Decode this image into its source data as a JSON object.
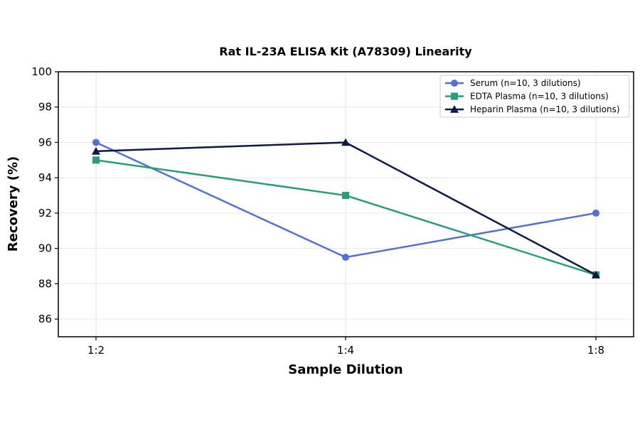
{
  "chart_data": {
    "type": "line",
    "title": "Rat IL-23A ELISA Kit (A78309) Linearity",
    "xlabel": "Sample Dilution",
    "ylabel": "Recovery (%)",
    "categories": [
      "1:2",
      "1:4",
      "1:8"
    ],
    "ylim": [
      85,
      100
    ],
    "yticks": [
      86,
      88,
      90,
      92,
      94,
      96,
      98,
      100
    ],
    "grid": true,
    "legend_position": "top-right",
    "series": [
      {
        "name": "Serum (n=10, 3 dilutions)",
        "values": [
          96,
          89.5,
          92
        ],
        "color": "#5470d6",
        "marker": "circle"
      },
      {
        "name": "EDTA Plasma (n=10, 3 dilutions)",
        "values": [
          95,
          93,
          88.5
        ],
        "color": "#279e7a",
        "marker": "square"
      },
      {
        "name": "Heparin Plasma (n=10, 3 dilutions)",
        "values": [
          95.5,
          96,
          88.5
        ],
        "color": "#0d1a45",
        "marker": "triangle"
      }
    ]
  }
}
